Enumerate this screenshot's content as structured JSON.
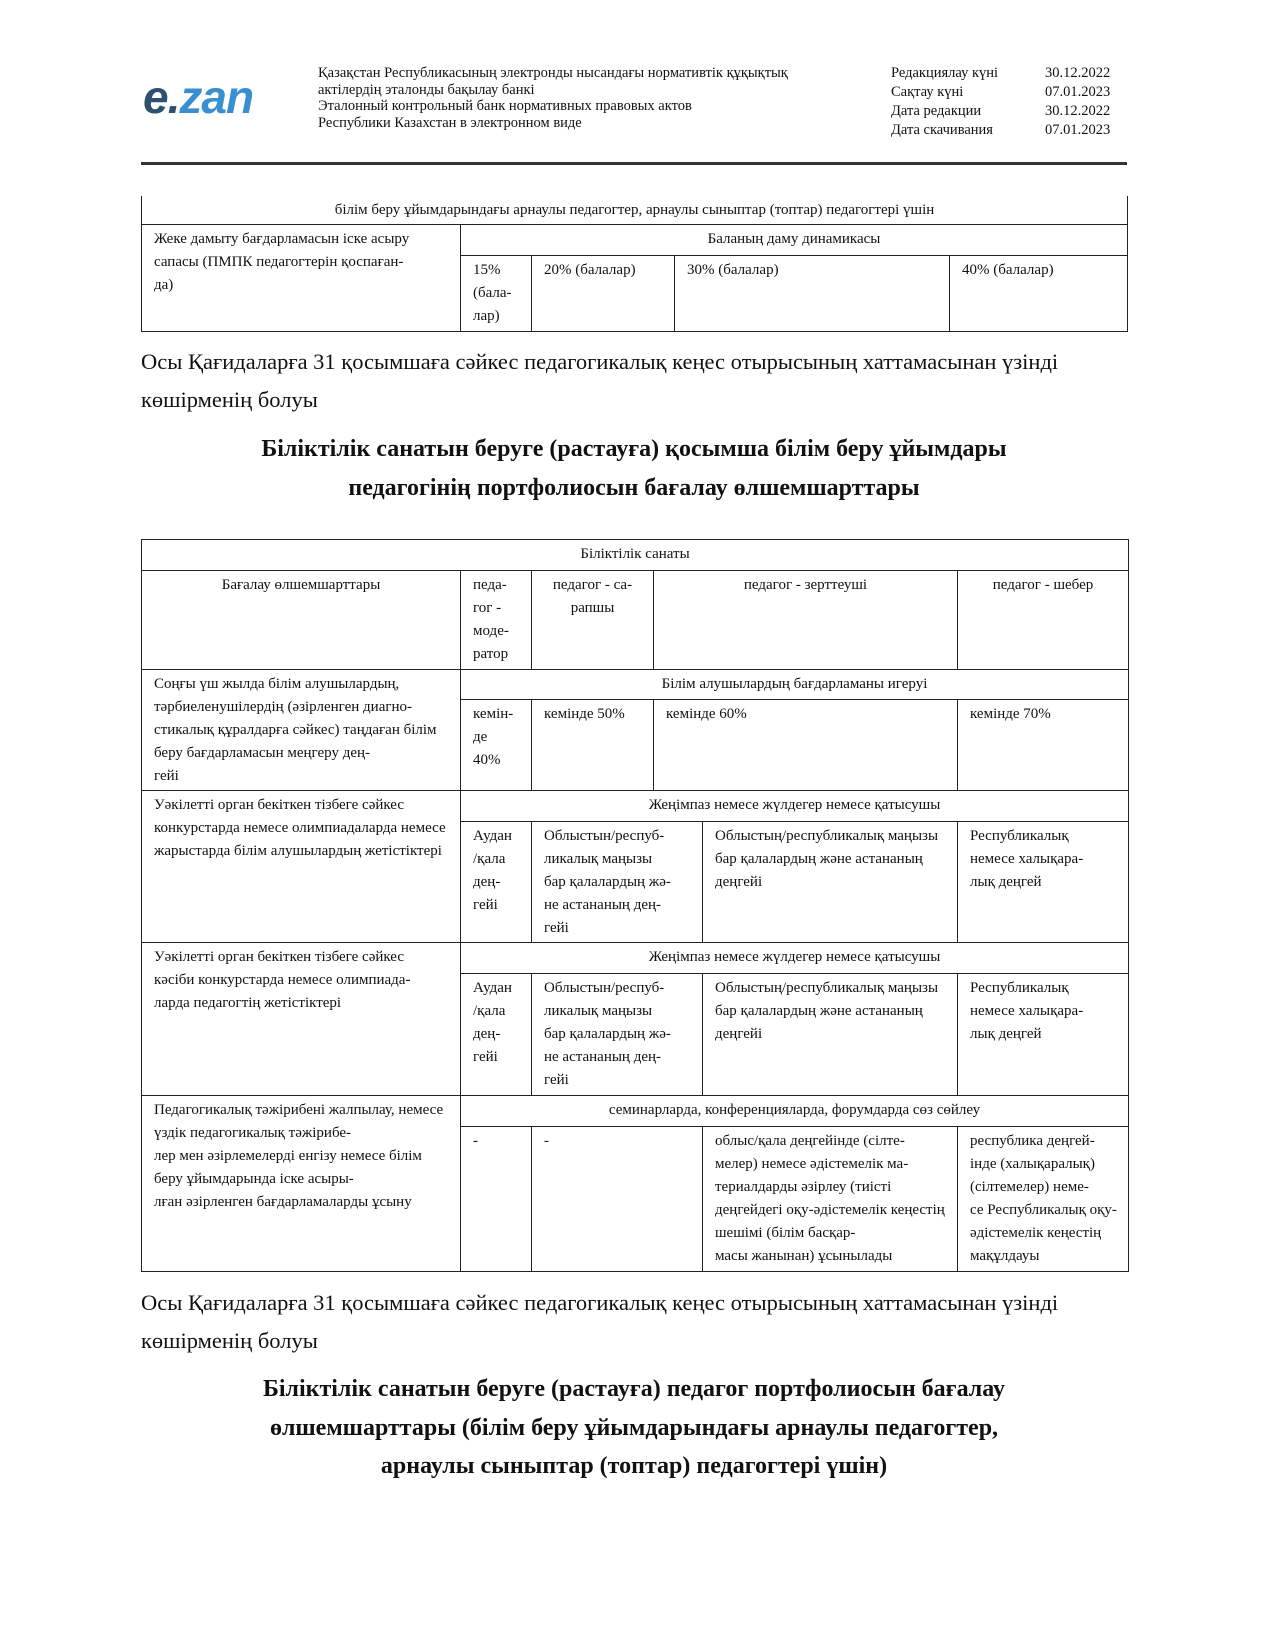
{
  "header": {
    "logo_text": "e.zan",
    "logo_colors": {
      "e": "#2f4f6f",
      "zan": "#3a8fd0"
    },
    "lines": [
      "Қазақстан Республикасының электронды нысандағы нормативтік құқықтық",
      "актілердің эталонды бақылау банкі",
      "Эталонный контрольный банк нормативных правовых актов",
      "Республики Казахстан в электронном виде"
    ],
    "meta": [
      {
        "label": "Редакциялау күні",
        "value": "30.12.2022"
      },
      {
        "label": "Сақтау күні",
        "value": "07.01.2023"
      },
      {
        "label": "Дата редакции",
        "value": "30.12.2022"
      },
      {
        "label": "Дата скачивания",
        "value": "07.01.2023"
      }
    ]
  },
  "table1": {
    "caption_row": "білім беру ұйымдарындағы арнаулы педагогтер, арнаулы сыныптар (топтар) педагогтері үшін",
    "criterion": "Жеке дамыту бағдарламасын іске асыру сапасы (ПМПК педагогтерін қоспаған-\nда)",
    "group": "Баланың даму динамикасы",
    "values": [
      "15%\n(бала-\nлар)",
      "20% (балалар)",
      "30% (балалар)",
      "40% (балалар)"
    ]
  },
  "paragraph1": "Осы Қағидаларға 31 қосымшаға сәйкес педагогикалық кеңес отырысының хаттамасынан үзінді көшірменің болуы",
  "heading1": "Біліктілік санатын беруге (растауға) қосымша білім беру ұйымдары\nпедагогінің портфолиосын бағалау өлшемшарттары",
  "table2": {
    "category_header": "Біліктілік санаты",
    "criteria_header": "Бағалау өлшемшарттары",
    "levels": [
      "педа-\nгог -\nмоде-\nратор",
      "педагог - са-\nрапшы",
      "педагог - зерттеуші",
      "педагог - шебер"
    ],
    "rows": [
      {
        "criterion": "Соңғы үш жылда білім алушылардың, тәрбиеленушілердің (әзірленген диагно-\nстикалық құралдарға сәйкес) таңдаған білім беру бағдарламасын меңгеру дең-\nгейі",
        "group": "Білім алушылардың бағдарламаны игеруі",
        "values": [
          "кемін-\nде\n40%",
          "кемінде 50%",
          "кемінде 60%",
          "кемінде 70%"
        ]
      },
      {
        "criterion": "Уәкілетті орган бекіткен тізбеге сәйкес конкурстарда немесе олимпиадаларда немесе жарыстарда білім алушылардың жетістіктері",
        "group": "Жеңімпаз немесе жүлдегер немесе қатысушы",
        "values": [
          "Аудан\n/қала\nдең-\nгейі",
          "Облыстын/респуб-\nликалық маңызы\nбар қалалардың жә-\nне астананың дең-\nгейі",
          "Облыстың/республикалық маңызы бар қалалардың және астананың деңгейі",
          "Республикалық немесе халықара-\nлық деңгей"
        ]
      },
      {
        "criterion": "Уәкілетті орган бекіткен тізбеге сәйкес кәсіби конкурстарда немесе олимпиада-\nларда педагогтің жетістіктері",
        "group": "Жеңімпаз немесе жүлдегер немесе қатысушы",
        "values": [
          "Аудан\n/қала\nдең-\nгейі",
          "Облыстын/респуб-\nликалық маңызы\nбар қалалардың жә-\nне астананың дең-\nгейі",
          "Облыстың/республикалық маңызы бар қалалардың және астананың деңгейі",
          "Республикалық немесе халықара-\nлық деңгей"
        ]
      },
      {
        "criterion": "Педагогикалық тәжірибені жалпылау, немесе үздік педагогикалық тәжірибе-\nлер мен әзірлемелерді енгізу немесе білім беру ұйымдарында іске асыры-\nлған әзірленген бағдарламаларды ұсыну",
        "group": "семинарларда, конференцияларда, форумдарда сөз сөйлеу",
        "values": [
          "-",
          "-",
          "облыс/қала деңгейінде (сілте-\nмелер) немесе әдістемелік ма-\nтериалдарды әзірлеу (тиісті деңгейдегі оқу-әдістемелік кеңестің шешімі (білім басқар-\nмасы жанынан) ұсынылады",
          "республика деңгей-\nінде (халықаралық) (сілтемелер) неме-\nсе Республикалық оқу-әдістемелік кеңестің мақұлдауы"
        ]
      }
    ]
  },
  "paragraph2": "Осы Қағидаларға 31 қосымшаға сәйкес педагогикалық кеңес отырысының хаттамасынан үзінді көшірменің болуы",
  "heading2": "Біліктілік санатын беруге (растауға) педагог портфолиосын бағалау\nөлшемшарттары (білім беру ұйымдарындағы арнаулы педагогтер,\nарнаулы сыныптар (топтар) педагогтері үшін)"
}
